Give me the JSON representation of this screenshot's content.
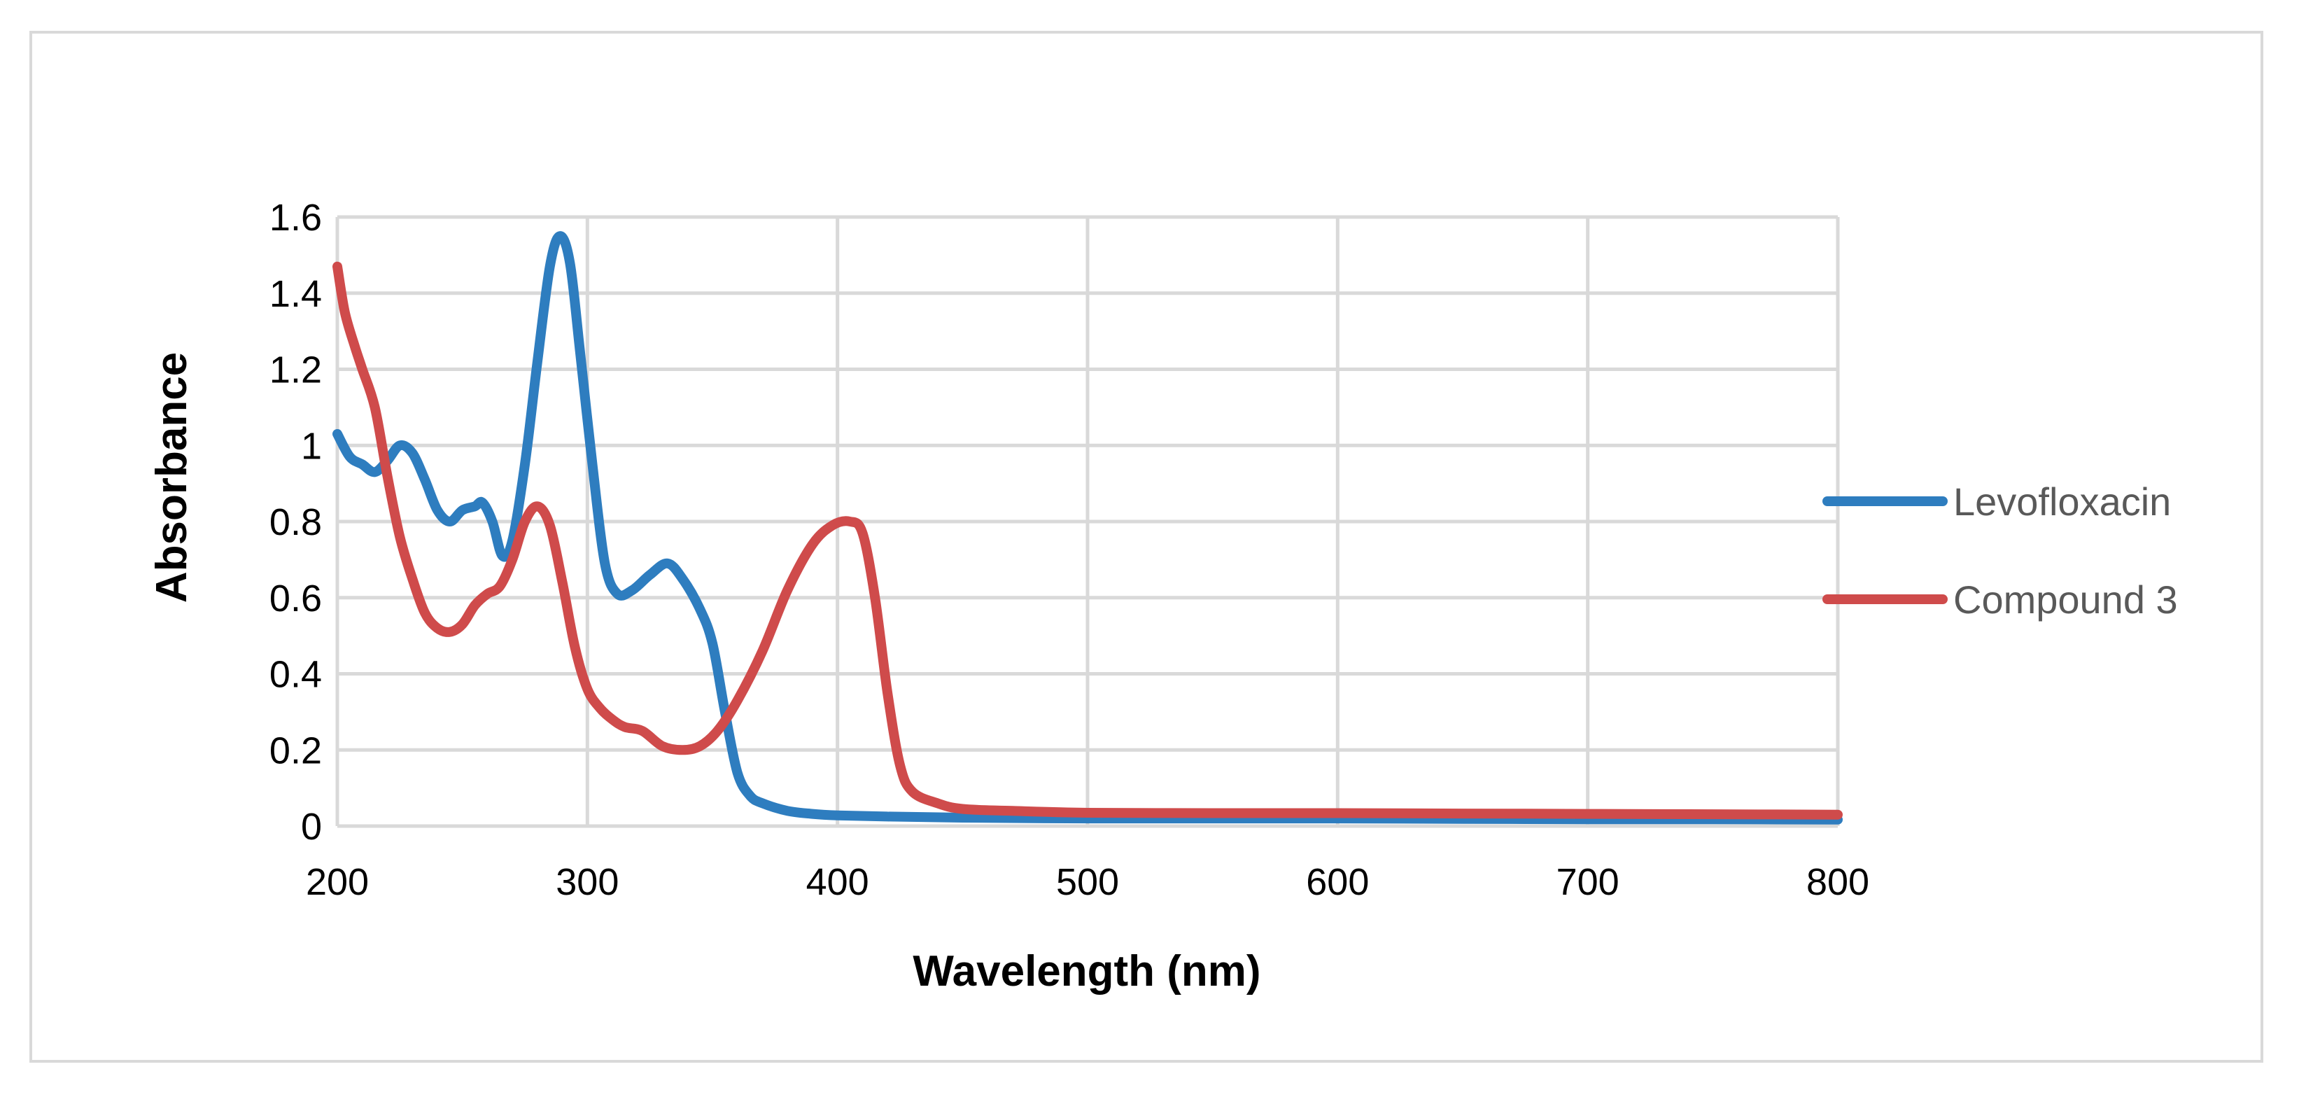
{
  "chart_data": {
    "type": "line",
    "title": "",
    "xlabel": "Wavelength (nm)",
    "ylabel": "Absorbance",
    "xlim": [
      200,
      800
    ],
    "ylim": [
      0,
      1.6
    ],
    "x_ticks": [
      200,
      300,
      400,
      500,
      600,
      700,
      800
    ],
    "x_tick_labels": [
      "200",
      "300",
      "400",
      "500",
      "600",
      "700",
      "800"
    ],
    "y_ticks": [
      0,
      0.2,
      0.4,
      0.6,
      0.8,
      1.0,
      1.2,
      1.4,
      1.6
    ],
    "y_tick_labels": [
      "0",
      "0.2",
      "0.4",
      "0.6",
      "0.8",
      "1",
      "1.2",
      "1.4",
      "1.6"
    ],
    "grid": true,
    "legend_position": "right",
    "series": [
      {
        "name": "Levofloxacin",
        "color": "#2e7dbf",
        "points": [
          [
            200,
            1.03
          ],
          [
            205,
            0.97
          ],
          [
            210,
            0.95
          ],
          [
            215,
            0.93
          ],
          [
            220,
            0.96
          ],
          [
            225,
            1.0
          ],
          [
            230,
            0.98
          ],
          [
            235,
            0.91
          ],
          [
            240,
            0.83
          ],
          [
            245,
            0.8
          ],
          [
            250,
            0.83
          ],
          [
            255,
            0.84
          ],
          [
            258,
            0.85
          ],
          [
            262,
            0.8
          ],
          [
            266,
            0.71
          ],
          [
            270,
            0.75
          ],
          [
            275,
            0.95
          ],
          [
            280,
            1.22
          ],
          [
            285,
            1.47
          ],
          [
            289,
            1.55
          ],
          [
            293,
            1.48
          ],
          [
            297,
            1.25
          ],
          [
            302,
            0.95
          ],
          [
            307,
            0.69
          ],
          [
            312,
            0.61
          ],
          [
            318,
            0.62
          ],
          [
            325,
            0.66
          ],
          [
            332,
            0.69
          ],
          [
            338,
            0.65
          ],
          [
            345,
            0.57
          ],
          [
            350,
            0.48
          ],
          [
            355,
            0.3
          ],
          [
            360,
            0.14
          ],
          [
            365,
            0.08
          ],
          [
            370,
            0.06
          ],
          [
            380,
            0.04
          ],
          [
            390,
            0.032
          ],
          [
            400,
            0.028
          ],
          [
            420,
            0.025
          ],
          [
            450,
            0.022
          ],
          [
            500,
            0.02
          ],
          [
            550,
            0.02
          ],
          [
            600,
            0.02
          ],
          [
            650,
            0.019
          ],
          [
            700,
            0.018
          ],
          [
            750,
            0.018
          ],
          [
            800,
            0.017
          ]
        ]
      },
      {
        "name": "Compound 3",
        "color": "#cf4b4b",
        "points": [
          [
            200,
            1.47
          ],
          [
            203,
            1.35
          ],
          [
            207,
            1.26
          ],
          [
            210,
            1.2
          ],
          [
            215,
            1.1
          ],
          [
            220,
            0.92
          ],
          [
            225,
            0.76
          ],
          [
            230,
            0.65
          ],
          [
            235,
            0.56
          ],
          [
            240,
            0.52
          ],
          [
            245,
            0.51
          ],
          [
            250,
            0.53
          ],
          [
            255,
            0.58
          ],
          [
            260,
            0.61
          ],
          [
            265,
            0.63
          ],
          [
            270,
            0.7
          ],
          [
            275,
            0.8
          ],
          [
            280,
            0.84
          ],
          [
            285,
            0.79
          ],
          [
            290,
            0.64
          ],
          [
            295,
            0.47
          ],
          [
            300,
            0.36
          ],
          [
            305,
            0.31
          ],
          [
            310,
            0.28
          ],
          [
            315,
            0.26
          ],
          [
            322,
            0.25
          ],
          [
            330,
            0.21
          ],
          [
            338,
            0.2
          ],
          [
            345,
            0.21
          ],
          [
            352,
            0.25
          ],
          [
            360,
            0.33
          ],
          [
            370,
            0.46
          ],
          [
            380,
            0.62
          ],
          [
            390,
            0.74
          ],
          [
            398,
            0.79
          ],
          [
            405,
            0.8
          ],
          [
            410,
            0.77
          ],
          [
            415,
            0.6
          ],
          [
            420,
            0.35
          ],
          [
            425,
            0.16
          ],
          [
            430,
            0.09
          ],
          [
            440,
            0.06
          ],
          [
            450,
            0.045
          ],
          [
            470,
            0.04
          ],
          [
            500,
            0.035
          ],
          [
            550,
            0.034
          ],
          [
            600,
            0.034
          ],
          [
            650,
            0.033
          ],
          [
            700,
            0.032
          ],
          [
            750,
            0.031
          ],
          [
            800,
            0.03
          ]
        ]
      }
    ]
  }
}
